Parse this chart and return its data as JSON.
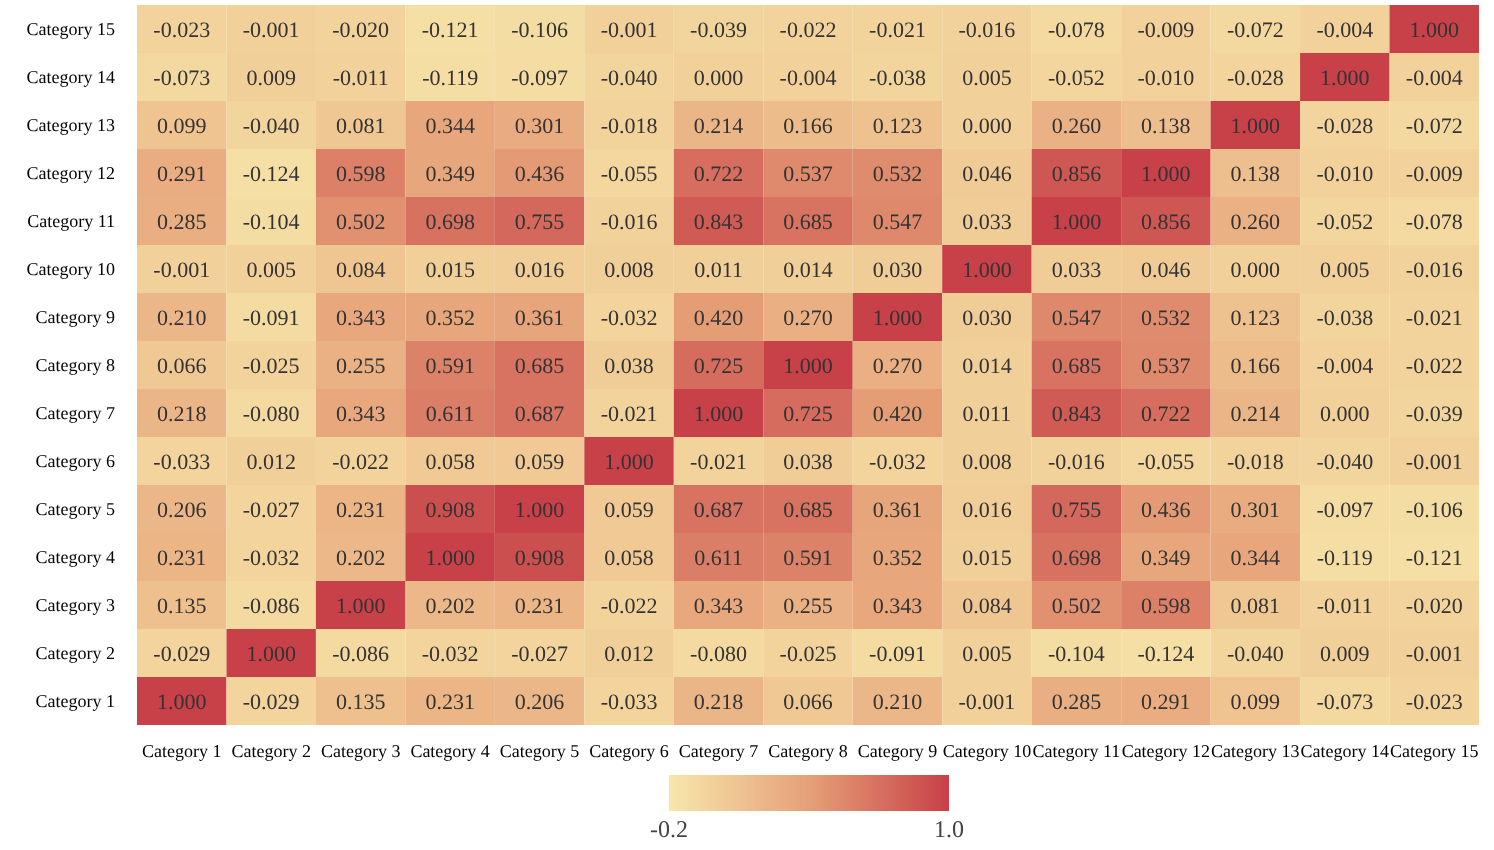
{
  "chart_data": {
    "type": "heatmap",
    "categories": [
      "Category 1",
      "Category 2",
      "Category 3",
      "Category 4",
      "Category 5",
      "Category 6",
      "Category 7",
      "Category 8",
      "Category 9",
      "Category 10",
      "Category 11",
      "Category 12",
      "Category 13",
      "Category 14",
      "Category 15"
    ],
    "y_categories": [
      "Category 15",
      "Category 14",
      "Category 13",
      "Category 12",
      "Category 11",
      "Category 10",
      "Category 9",
      "Category 8",
      "Category 7",
      "Category 6",
      "Category 5",
      "Category 4",
      "Category 3",
      "Category 2",
      "Category 1"
    ],
    "cells": [
      [
        -0.023,
        -0.001,
        -0.02,
        -0.121,
        -0.106,
        -0.001,
        -0.039,
        -0.022,
        -0.021,
        -0.016,
        -0.078,
        -0.009,
        -0.072,
        -0.004,
        1.0
      ],
      [
        -0.073,
        0.009,
        -0.011,
        -0.119,
        -0.097,
        -0.04,
        0.0,
        -0.004,
        -0.038,
        0.005,
        -0.052,
        -0.01,
        -0.028,
        1.0,
        -0.004
      ],
      [
        0.099,
        -0.04,
        0.081,
        0.344,
        0.301,
        -0.018,
        0.214,
        0.166,
        0.123,
        0.0,
        0.26,
        0.138,
        1.0,
        -0.028,
        -0.072
      ],
      [
        0.291,
        -0.124,
        0.598,
        0.349,
        0.436,
        -0.055,
        0.722,
        0.537,
        0.532,
        0.046,
        0.856,
        1.0,
        0.138,
        -0.01,
        -0.009
      ],
      [
        0.285,
        -0.104,
        0.502,
        0.698,
        0.755,
        -0.016,
        0.843,
        0.685,
        0.547,
        0.033,
        1.0,
        0.856,
        0.26,
        -0.052,
        -0.078
      ],
      [
        -0.001,
        0.005,
        0.084,
        0.015,
        0.016,
        0.008,
        0.011,
        0.014,
        0.03,
        1.0,
        0.033,
        0.046,
        0.0,
        0.005,
        -0.016
      ],
      [
        0.21,
        -0.091,
        0.343,
        0.352,
        0.361,
        -0.032,
        0.42,
        0.27,
        1.0,
        0.03,
        0.547,
        0.532,
        0.123,
        -0.038,
        -0.021
      ],
      [
        0.066,
        -0.025,
        0.255,
        0.591,
        0.685,
        0.038,
        0.725,
        1.0,
        0.27,
        0.014,
        0.685,
        0.537,
        0.166,
        -0.004,
        -0.022
      ],
      [
        0.218,
        -0.08,
        0.343,
        0.611,
        0.687,
        -0.021,
        1.0,
        0.725,
        0.42,
        0.011,
        0.843,
        0.722,
        0.214,
        0.0,
        -0.039
      ],
      [
        -0.033,
        0.012,
        -0.022,
        0.058,
        0.059,
        1.0,
        -0.021,
        0.038,
        -0.032,
        0.008,
        -0.016,
        -0.055,
        -0.018,
        -0.04,
        -0.001
      ],
      [
        0.206,
        -0.027,
        0.231,
        0.908,
        1.0,
        0.059,
        0.687,
        0.685,
        0.361,
        0.016,
        0.755,
        0.436,
        0.301,
        -0.097,
        -0.106
      ],
      [
        0.231,
        -0.032,
        0.202,
        1.0,
        0.908,
        0.058,
        0.611,
        0.591,
        0.352,
        0.015,
        0.698,
        0.349,
        0.344,
        -0.119,
        -0.121
      ],
      [
        0.135,
        -0.086,
        1.0,
        0.202,
        0.231,
        -0.022,
        0.343,
        0.255,
        0.343,
        0.084,
        0.502,
        0.598,
        0.081,
        -0.011,
        -0.02
      ],
      [
        -0.029,
        1.0,
        -0.086,
        -0.032,
        -0.027,
        0.012,
        -0.08,
        -0.025,
        -0.091,
        0.005,
        -0.104,
        -0.124,
        -0.04,
        0.009,
        -0.001
      ],
      [
        1.0,
        -0.029,
        0.135,
        0.231,
        0.206,
        -0.033,
        0.218,
        0.066,
        0.21,
        -0.001,
        0.285,
        0.291,
        0.099,
        -0.073,
        -0.023
      ]
    ],
    "cell_labels": [
      [
        "-0.023",
        "-0.001",
        "-0.020",
        "-0.121",
        "-0.106",
        "-0.001",
        "-0.039",
        "-0.022",
        "-0.021",
        "-0.016",
        "-0.078",
        "-0.009",
        "-0.072",
        "-0.004",
        "1.000"
      ],
      [
        "-0.073",
        "0.009",
        "-0.011",
        "-0.119",
        "-0.097",
        "-0.040",
        "0.000",
        "-0.004",
        "-0.038",
        "0.005",
        "-0.052",
        "-0.010",
        "-0.028",
        "1.000",
        "-0.004"
      ],
      [
        "0.099",
        "-0.040",
        "0.081",
        "0.344",
        "0.301",
        "-0.018",
        "0.214",
        "0.166",
        "0.123",
        "0.000",
        "0.260",
        "0.138",
        "1.000",
        "-0.028",
        "-0.072"
      ],
      [
        "0.291",
        "-0.124",
        "0.598",
        "0.349",
        "0.436",
        "-0.055",
        "0.722",
        "0.537",
        "0.532",
        "0.046",
        "0.856",
        "1.000",
        "0.138",
        "-0.010",
        "-0.009"
      ],
      [
        "0.285",
        "-0.104",
        "0.502",
        "0.698",
        "0.755",
        "-0.016",
        "0.843",
        "0.685",
        "0.547",
        "0.033",
        "1.000",
        "0.856",
        "0.260",
        "-0.052",
        "-0.078"
      ],
      [
        "-0.001",
        "0.005",
        "0.084",
        "0.015",
        "0.016",
        "0.008",
        "0.011",
        "0.014",
        "0.030",
        "1.000",
        "0.033",
        "0.046",
        "0.000",
        "0.005",
        "-0.016"
      ],
      [
        "0.210",
        "-0.091",
        "0.343",
        "0.352",
        "0.361",
        "-0.032",
        "0.420",
        "0.270",
        "1.000",
        "0.030",
        "0.547",
        "0.532",
        "0.123",
        "-0.038",
        "-0.021"
      ],
      [
        "0.066",
        "-0.025",
        "0.255",
        "0.591",
        "0.685",
        "0.038",
        "0.725",
        "1.000",
        "0.270",
        "0.014",
        "0.685",
        "0.537",
        "0.166",
        "-0.004",
        "-0.022"
      ],
      [
        "0.218",
        "-0.080",
        "0.343",
        "0.611",
        "0.687",
        "-0.021",
        "1.000",
        "0.725",
        "0.420",
        "0.011",
        "0.843",
        "0.722",
        "0.214",
        "0.000",
        "-0.039"
      ],
      [
        "-0.033",
        "0.012",
        "-0.022",
        "0.058",
        "0.059",
        "1.000",
        "-0.021",
        "0.038",
        "-0.032",
        "0.008",
        "-0.016",
        "-0.055",
        "-0.018",
        "-0.040",
        "-0.001"
      ],
      [
        "0.206",
        "-0.027",
        "0.231",
        "0.908",
        "1.000",
        "0.059",
        "0.687",
        "0.685",
        "0.361",
        "0.016",
        "0.755",
        "0.436",
        "0.301",
        "-0.097",
        "-0.106"
      ],
      [
        "0.231",
        "-0.032",
        "0.202",
        "1.000",
        "0.908",
        "0.058",
        "0.611",
        "0.591",
        "0.352",
        "0.015",
        "0.698",
        "0.349",
        "0.344",
        "-0.119",
        "-0.121"
      ],
      [
        "0.135",
        "-0.086",
        "1.000",
        "0.202",
        "0.231",
        "-0.022",
        "0.343",
        "0.255",
        "0.343",
        "0.084",
        "0.502",
        "0.598",
        "0.081",
        "-0.011",
        "-0.020"
      ],
      [
        "-0.029",
        "1.000",
        "-0.086",
        "-0.032",
        "-0.027",
        "0.012",
        "-0.080",
        "-0.025",
        "-0.091",
        "0.005",
        "-0.104",
        "-0.124",
        "-0.040",
        "0.009",
        "-0.001"
      ],
      [
        "1.000",
        "-0.029",
        "0.135",
        "0.231",
        "0.206",
        "-0.033",
        "0.218",
        "0.066",
        "0.210",
        "-0.001",
        "0.285",
        "0.291",
        "0.099",
        "-0.073",
        "-0.023"
      ]
    ],
    "clim": [
      -0.2,
      1.0
    ],
    "cticks": [
      {
        "value": -0.2,
        "label": "-0.2"
      },
      {
        "value": 1.0,
        "label": "1.0"
      }
    ]
  }
}
